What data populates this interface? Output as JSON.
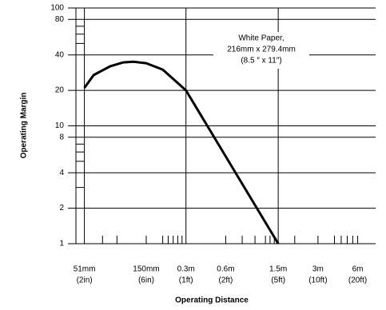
{
  "chart_data": {
    "type": "line",
    "xlabel": "Operating Distance",
    "ylabel": "Operating Margin",
    "annotation": [
      "White Paper,",
      "216mm x 279.4mm",
      "(8.5 ″ x 11″)"
    ],
    "x": [
      0.051,
      0.06,
      0.08,
      0.1,
      0.12,
      0.15,
      0.2,
      0.25,
      0.3,
      1.5
    ],
    "series": [
      {
        "color": "#000000",
        "values": [
          21,
          27,
          32,
          34.5,
          35,
          34,
          30,
          24,
          20,
          1
        ]
      }
    ],
    "xscale": "log",
    "yscale": "log",
    "xlim": [
      0.044,
      8.2
    ],
    "ylim": [
      1,
      100
    ],
    "xticks": [
      {
        "value": 0.051,
        "label": "51mm",
        "sublabel": "(2in)",
        "grid": true
      },
      {
        "value": 0.15,
        "label": "150mm",
        "sublabel": "(6in)",
        "grid": false
      },
      {
        "value": 0.3,
        "label": "0.3m",
        "sublabel": "(1ft)",
        "grid": true
      },
      {
        "value": 0.6,
        "label": "0.6m",
        "sublabel": "(2ft)",
        "grid": false
      },
      {
        "value": 1.5,
        "label": "1.5m",
        "sublabel": "(5ft)",
        "grid": true
      },
      {
        "value": 3,
        "label": "3m",
        "sublabel": "(10ft)",
        "grid": false
      },
      {
        "value": 6,
        "label": "6m",
        "sublabel": "(20ft)",
        "grid": false
      }
    ],
    "xminorticks": [
      0.07,
      0.09,
      0.2,
      0.22,
      0.24,
      0.26,
      0.28,
      0.8,
      1,
      1.2,
      1.3,
      1.4,
      2,
      4,
      4.5,
      5,
      5.5
    ],
    "yticks": [
      1,
      2,
      4,
      8,
      10,
      20,
      40,
      80,
      100
    ],
    "yminorticks": [
      3,
      5,
      6,
      7,
      50,
      60,
      70
    ],
    "grid": true
  }
}
